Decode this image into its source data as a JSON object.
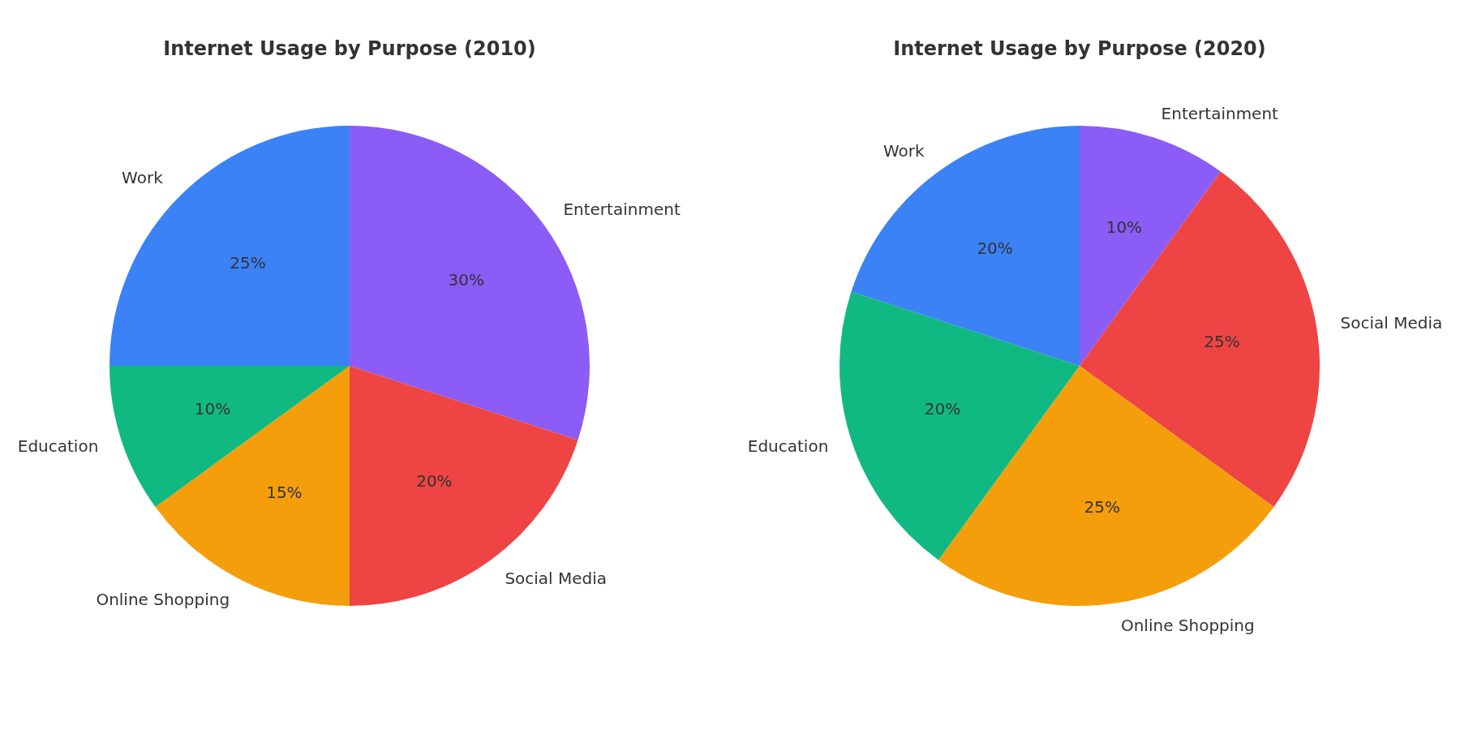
{
  "chart_data": [
    {
      "type": "pie",
      "title": "Internet Usage by Purpose (2010)",
      "categories": [
        "Entertainment",
        "Social Media",
        "Online Shopping",
        "Education",
        "Work"
      ],
      "values": [
        30,
        20,
        15,
        10,
        25
      ],
      "value_labels": [
        "30%",
        "20%",
        "15%",
        "10%",
        "25%"
      ],
      "colors": [
        "#8b5cf6",
        "#ef4444",
        "#f59e0b",
        "#10b981",
        "#3b82f6"
      ],
      "legend": false
    },
    {
      "type": "pie",
      "title": "Internet Usage by Purpose (2020)",
      "categories": [
        "Entertainment",
        "Social Media",
        "Online Shopping",
        "Education",
        "Work"
      ],
      "values": [
        10,
        25,
        25,
        20,
        20
      ],
      "value_labels": [
        "10%",
        "25%",
        "25%",
        "20%",
        "20%"
      ],
      "colors": [
        "#8b5cf6",
        "#ef4444",
        "#f59e0b",
        "#10b981",
        "#3b82f6"
      ],
      "legend": false
    }
  ]
}
